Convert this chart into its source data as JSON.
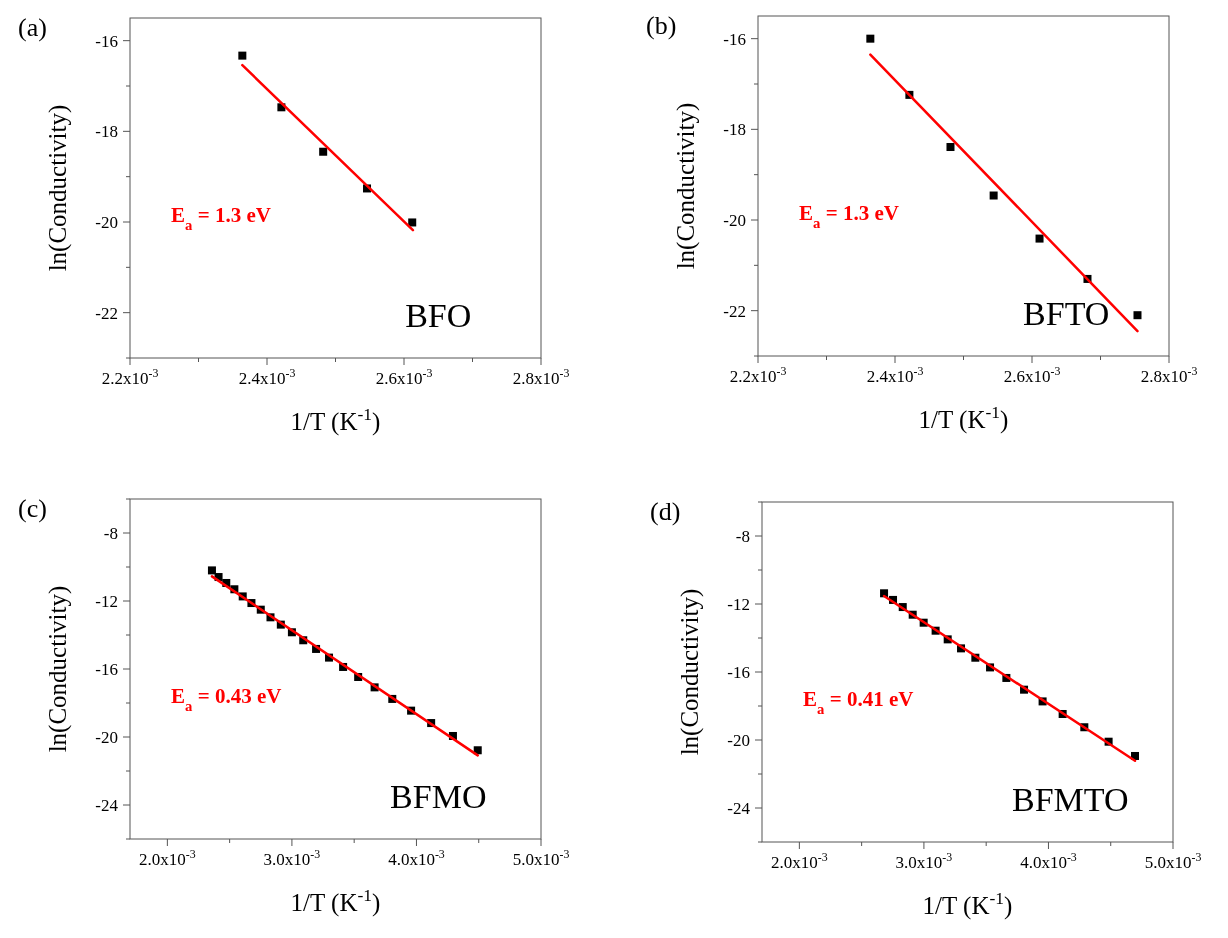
{
  "chart_data": [
    {
      "type": "scatter",
      "title": "(a)",
      "xlabel": "1/T (K$^{-1}$)",
      "ylabel": "ln(Conductivity)",
      "xlim": [
        0.0022,
        0.0028
      ],
      "xticks": [
        {
          "value": 0.0022,
          "label": "2.2x10$^{-3}$"
        },
        {
          "value": 0.0023,
          "label": null
        },
        {
          "value": 0.0024,
          "label": "2.4x10$^{-3}$"
        },
        {
          "value": 0.0025,
          "label": null
        },
        {
          "value": 0.0026,
          "label": "2.6x10$^{-3}$"
        },
        {
          "value": 0.0027,
          "label": null
        },
        {
          "value": 0.0028,
          "label": "2.8x10$^{-3}$"
        }
      ],
      "ylim": [
        -23,
        -15.5
      ],
      "yticks": [
        {
          "value": -23,
          "label": null
        },
        -22,
        {
          "value": -21,
          "label": null
        },
        -20,
        {
          "value": -19,
          "label": null
        },
        -18,
        {
          "value": -17,
          "label": null
        },
        -16
      ],
      "series": [
        {
          "color": "#000000",
          "marker": "square",
          "x": [
            0.002364,
            0.002421,
            0.002482,
            0.002546,
            0.002612
          ],
          "values": [
            -16.33,
            -17.47,
            -18.45,
            -19.26,
            -20.01
          ]
        },
        {
          "type": "line",
          "marker": "none",
          "color": "#ff0000",
          "x": [
            0.002364,
            0.002613
          ],
          "values": [
            -16.54,
            -20.18
          ]
        }
      ],
      "annotations": [
        "E$_{a}$ = 1.3 eV",
        "BFO"
      ]
    },
    {
      "type": "scatter",
      "title": "(b)",
      "xlabel": "1/T (K$^{-1}$)",
      "ylabel": "ln(Conductivity)",
      "xlim": [
        0.0022,
        0.0028
      ],
      "xticks": [
        {
          "value": 0.0022,
          "label": "2.2x10$^{-3}$"
        },
        {
          "value": 0.0023,
          "label": null
        },
        {
          "value": 0.0024,
          "label": "2.4x10$^{-3}$"
        },
        {
          "value": 0.0025,
          "label": null
        },
        {
          "value": 0.0026,
          "label": "2.6x10$^{-3}$"
        },
        {
          "value": 0.0027,
          "label": null
        },
        {
          "value": 0.0028,
          "label": "2.8x10$^{-3}$"
        }
      ],
      "ylim": [
        -23,
        -15.5
      ],
      "yticks": [
        {
          "value": -23,
          "label": null
        },
        -22,
        {
          "value": -21,
          "label": null
        },
        -20,
        {
          "value": -19,
          "label": null
        },
        -18,
        {
          "value": -17,
          "label": null
        },
        -16
      ],
      "series": [
        {
          "color": "#000000",
          "marker": "square",
          "x": [
            0.002364,
            0.002421,
            0.002481,
            0.002544,
            0.002611,
            0.002681,
            0.002754
          ],
          "values": [
            -16.0,
            -17.24,
            -18.39,
            -19.46,
            -20.41,
            -21.3,
            -22.1
          ]
        },
        {
          "type": "line",
          "marker": "none",
          "color": "#ff0000",
          "x": [
            0.002364,
            0.002754
          ],
          "values": [
            -16.35,
            -22.45
          ]
        }
      ],
      "annotations": [
        "E$_{a}$ = 1.3 eV",
        "BFTO"
      ]
    },
    {
      "type": "scatter",
      "title": "(c)",
      "xlabel": "1/T (K$^{-1}$)",
      "ylabel": "ln(Conductivity)",
      "xlim": [
        0.0017,
        0.005
      ],
      "xticks": [
        {
          "value": 0.002,
          "label": "2.0x10$^{-3}$"
        },
        {
          "value": 0.0025,
          "label": null
        },
        {
          "value": 0.003,
          "label": "3.0x10$^{-3}$"
        },
        {
          "value": 0.0035,
          "label": null
        },
        {
          "value": 0.004,
          "label": "4.0x10$^{-3}$"
        },
        {
          "value": 0.0045,
          "label": null
        },
        {
          "value": 0.005,
          "label": "5.0x10$^{-3}$"
        }
      ],
      "ylim": [
        -26,
        -6
      ],
      "yticks": [
        {
          "value": -26,
          "label": null
        },
        -24,
        {
          "value": -22,
          "label": null
        },
        -20,
        {
          "value": -18,
          "label": null
        },
        -16,
        {
          "value": -14,
          "label": null
        },
        -12,
        {
          "value": -10,
          "label": null
        },
        -8,
        {
          "value": -6,
          "label": null
        }
      ],
      "series": [
        {
          "color": "#000000",
          "marker": "square",
          "x": [
            0.002358,
            0.002411,
            0.002473,
            0.002538,
            0.002605,
            0.002675,
            0.00275,
            0.002828,
            0.002911,
            0.003,
            0.003091,
            0.003194,
            0.003298,
            0.003411,
            0.003532,
            0.003664,
            0.003806,
            0.003957,
            0.004118,
            0.004293,
            0.004492
          ],
          "values": [
            -10.2,
            -10.59,
            -10.94,
            -11.31,
            -11.73,
            -12.12,
            -12.51,
            -12.96,
            -13.39,
            -13.84,
            -14.31,
            -14.82,
            -15.33,
            -15.88,
            -16.47,
            -17.08,
            -17.76,
            -18.45,
            -19.18,
            -19.94,
            -20.78
          ]
        },
        {
          "type": "line",
          "marker": "none",
          "color": "#ff0000",
          "x": [
            0.002358,
            0.004492
          ],
          "values": [
            -10.55,
            -21.08
          ]
        }
      ],
      "annotations": [
        "E$_{a}$ = 0.43 eV",
        "BFMO"
      ]
    },
    {
      "type": "scatter",
      "title": "(d)",
      "xlabel": "1/T (K$^{-1}$)",
      "ylabel": "ln(Conductivity)",
      "xlim": [
        0.0017,
        0.005
      ],
      "xticks": [
        {
          "value": 0.002,
          "label": "2.0x10$^{-3}$"
        },
        {
          "value": 0.0025,
          "label": null
        },
        {
          "value": 0.003,
          "label": "3.0x10$^{-3}$"
        },
        {
          "value": 0.0035,
          "label": null
        },
        {
          "value": 0.004,
          "label": "4.0x10$^{-3}$"
        },
        {
          "value": 0.0045,
          "label": null
        },
        {
          "value": 0.005,
          "label": "5.0x10$^{-3}$"
        }
      ],
      "ylim": [
        -26,
        -6
      ],
      "yticks": [
        {
          "value": -26,
          "label": null
        },
        -24,
        {
          "value": -22,
          "label": null
        },
        -20,
        {
          "value": -18,
          "label": null
        },
        -16,
        {
          "value": -14,
          "label": null
        },
        -12,
        {
          "value": -10,
          "label": null
        },
        -8,
        {
          "value": -6,
          "label": null
        }
      ],
      "series": [
        {
          "color": "#000000",
          "marker": "square",
          "x": [
            0.00268,
            0.002752,
            0.00283,
            0.00291,
            0.002998,
            0.003094,
            0.003191,
            0.003298,
            0.003413,
            0.003531,
            0.003662,
            0.003804,
            0.003953,
            0.004114,
            0.004288,
            0.004483,
            0.004695
          ],
          "values": [
            -11.37,
            -11.76,
            -12.18,
            -12.63,
            -13.1,
            -13.57,
            -14.08,
            -14.61,
            -15.16,
            -15.73,
            -16.35,
            -17.04,
            -17.73,
            -18.47,
            -19.25,
            -20.1,
            -20.94
          ]
        },
        {
          "type": "line",
          "marker": "none",
          "color": "#ff0000",
          "x": [
            0.00268,
            0.004695
          ],
          "values": [
            -11.53,
            -21.22
          ]
        }
      ],
      "annotations": [
        "E$_{a}$ = 0.41 eV",
        "BFMTO"
      ]
    }
  ]
}
